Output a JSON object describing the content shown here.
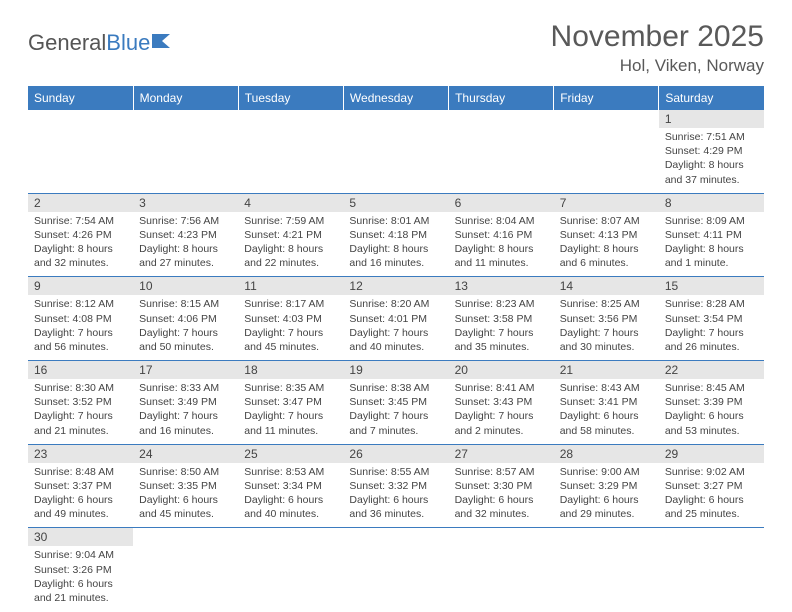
{
  "logo": {
    "text1": "General",
    "text2": "Blue"
  },
  "title": "November 2025",
  "location": "Hol, Viken, Norway",
  "headers": [
    "Sunday",
    "Monday",
    "Tuesday",
    "Wednesday",
    "Thursday",
    "Friday",
    "Saturday"
  ],
  "colors": {
    "header_bg": "#3b7bbf",
    "daynum_bg": "#e6e6e6"
  },
  "weeks": [
    {
      "nums": [
        "",
        "",
        "",
        "",
        "",
        "",
        "1"
      ],
      "details": [
        "",
        "",
        "",
        "",
        "",
        "",
        "Sunrise: 7:51 AM\nSunset: 4:29 PM\nDaylight: 8 hours and 37 minutes."
      ]
    },
    {
      "nums": [
        "2",
        "3",
        "4",
        "5",
        "6",
        "7",
        "8"
      ],
      "details": [
        "Sunrise: 7:54 AM\nSunset: 4:26 PM\nDaylight: 8 hours and 32 minutes.",
        "Sunrise: 7:56 AM\nSunset: 4:23 PM\nDaylight: 8 hours and 27 minutes.",
        "Sunrise: 7:59 AM\nSunset: 4:21 PM\nDaylight: 8 hours and 22 minutes.",
        "Sunrise: 8:01 AM\nSunset: 4:18 PM\nDaylight: 8 hours and 16 minutes.",
        "Sunrise: 8:04 AM\nSunset: 4:16 PM\nDaylight: 8 hours and 11 minutes.",
        "Sunrise: 8:07 AM\nSunset: 4:13 PM\nDaylight: 8 hours and 6 minutes.",
        "Sunrise: 8:09 AM\nSunset: 4:11 PM\nDaylight: 8 hours and 1 minute."
      ]
    },
    {
      "nums": [
        "9",
        "10",
        "11",
        "12",
        "13",
        "14",
        "15"
      ],
      "details": [
        "Sunrise: 8:12 AM\nSunset: 4:08 PM\nDaylight: 7 hours and 56 minutes.",
        "Sunrise: 8:15 AM\nSunset: 4:06 PM\nDaylight: 7 hours and 50 minutes.",
        "Sunrise: 8:17 AM\nSunset: 4:03 PM\nDaylight: 7 hours and 45 minutes.",
        "Sunrise: 8:20 AM\nSunset: 4:01 PM\nDaylight: 7 hours and 40 minutes.",
        "Sunrise: 8:23 AM\nSunset: 3:58 PM\nDaylight: 7 hours and 35 minutes.",
        "Sunrise: 8:25 AM\nSunset: 3:56 PM\nDaylight: 7 hours and 30 minutes.",
        "Sunrise: 8:28 AM\nSunset: 3:54 PM\nDaylight: 7 hours and 26 minutes."
      ]
    },
    {
      "nums": [
        "16",
        "17",
        "18",
        "19",
        "20",
        "21",
        "22"
      ],
      "details": [
        "Sunrise: 8:30 AM\nSunset: 3:52 PM\nDaylight: 7 hours and 21 minutes.",
        "Sunrise: 8:33 AM\nSunset: 3:49 PM\nDaylight: 7 hours and 16 minutes.",
        "Sunrise: 8:35 AM\nSunset: 3:47 PM\nDaylight: 7 hours and 11 minutes.",
        "Sunrise: 8:38 AM\nSunset: 3:45 PM\nDaylight: 7 hours and 7 minutes.",
        "Sunrise: 8:41 AM\nSunset: 3:43 PM\nDaylight: 7 hours and 2 minutes.",
        "Sunrise: 8:43 AM\nSunset: 3:41 PM\nDaylight: 6 hours and 58 minutes.",
        "Sunrise: 8:45 AM\nSunset: 3:39 PM\nDaylight: 6 hours and 53 minutes."
      ]
    },
    {
      "nums": [
        "23",
        "24",
        "25",
        "26",
        "27",
        "28",
        "29"
      ],
      "details": [
        "Sunrise: 8:48 AM\nSunset: 3:37 PM\nDaylight: 6 hours and 49 minutes.",
        "Sunrise: 8:50 AM\nSunset: 3:35 PM\nDaylight: 6 hours and 45 minutes.",
        "Sunrise: 8:53 AM\nSunset: 3:34 PM\nDaylight: 6 hours and 40 minutes.",
        "Sunrise: 8:55 AM\nSunset: 3:32 PM\nDaylight: 6 hours and 36 minutes.",
        "Sunrise: 8:57 AM\nSunset: 3:30 PM\nDaylight: 6 hours and 32 minutes.",
        "Sunrise: 9:00 AM\nSunset: 3:29 PM\nDaylight: 6 hours and 29 minutes.",
        "Sunrise: 9:02 AM\nSunset: 3:27 PM\nDaylight: 6 hours and 25 minutes."
      ]
    },
    {
      "nums": [
        "30",
        "",
        "",
        "",
        "",
        "",
        ""
      ],
      "details": [
        "Sunrise: 9:04 AM\nSunset: 3:26 PM\nDaylight: 6 hours and 21 minutes.",
        "",
        "",
        "",
        "",
        "",
        ""
      ]
    }
  ]
}
